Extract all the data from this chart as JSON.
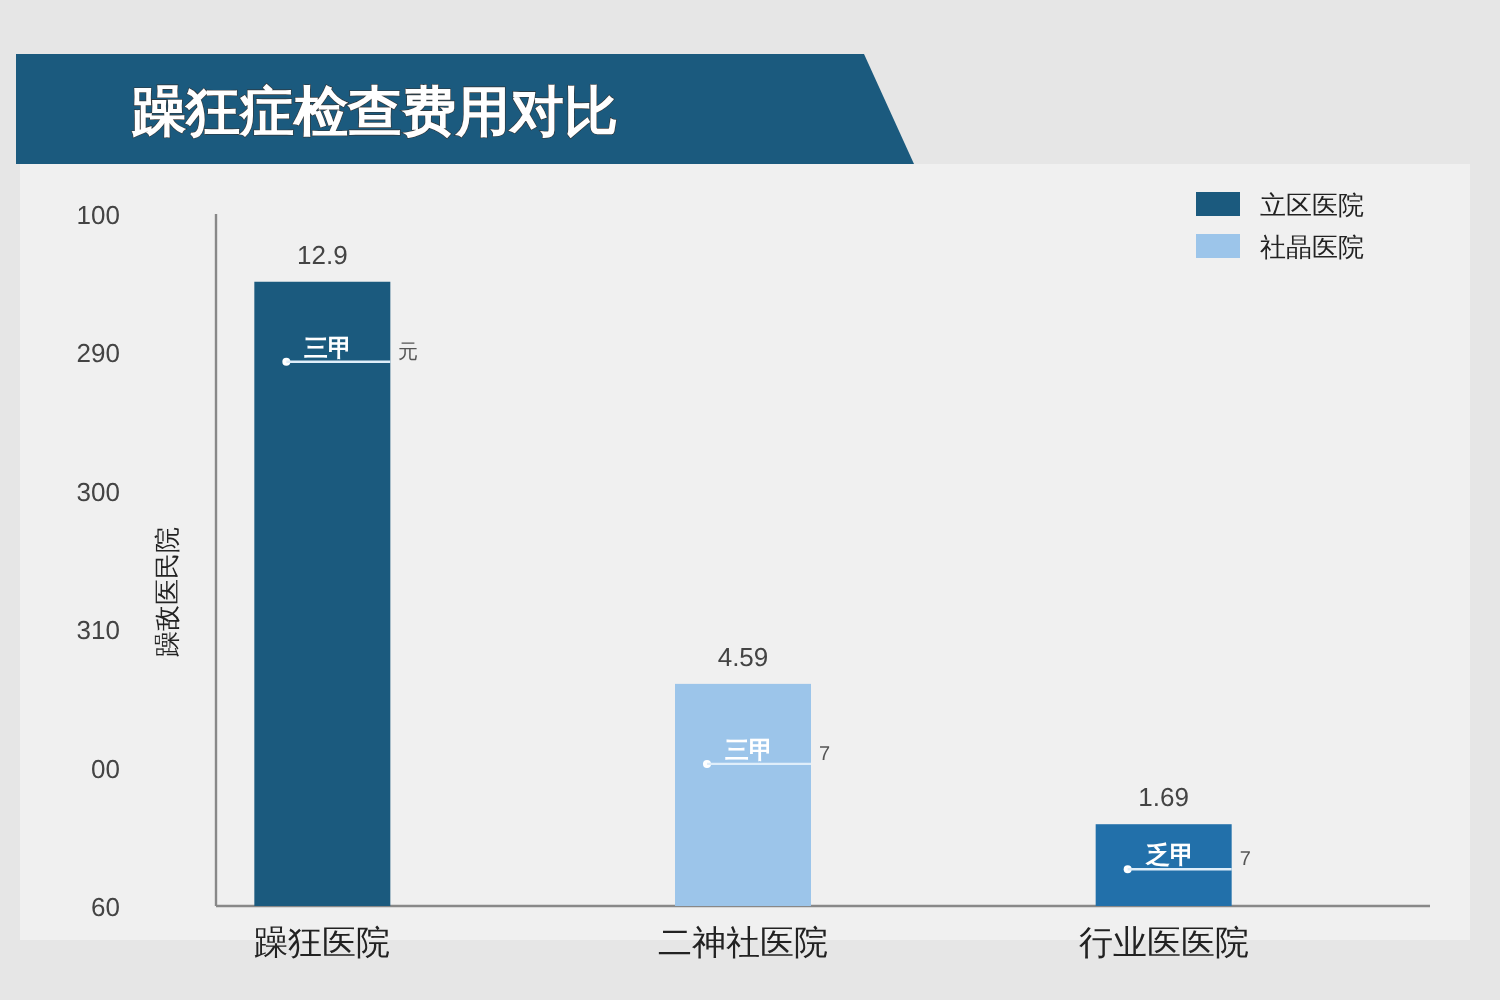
{
  "chart_data": {
    "type": "bar",
    "title": "躁狂症检查费用对比",
    "ylabel": "躁敌医民院",
    "categories": [
      "躁狂医院",
      "二神社医院",
      "行业医医院"
    ],
    "ylim": [
      0,
      14.3
    ],
    "tick_labels": "x",
    "data_labels": true,
    "series": [
      {
        "name": "立区医院",
        "color": "#1b5a7e",
        "values": [
          12.9,
          null,
          null
        ]
      },
      {
        "name": "社晶医院",
        "color": "#9cc5ea",
        "values": [
          null,
          4.59,
          null
        ]
      },
      {
        "color": "#2270aa",
        "values": [
          null,
          null,
          1.69
        ]
      }
    ],
    "annotations": [
      "100",
      "290",
      "300",
      "310",
      "00",
      "60",
      "三甲",
      "三甲",
      "乏甲",
      "元",
      "7",
      "7"
    ],
    "legend": "top right"
  }
}
